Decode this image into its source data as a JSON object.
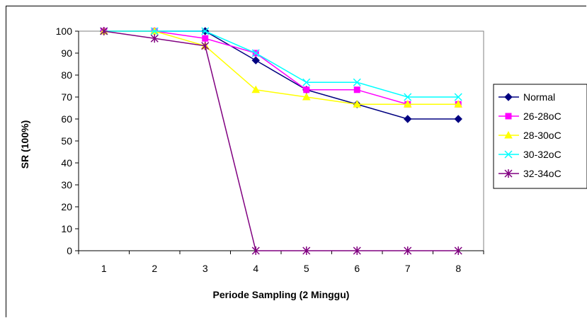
{
  "chart_data": {
    "type": "line",
    "title": "",
    "xlabel": "Periode Sampling (2 Minggu)",
    "ylabel": "SR (100%)",
    "x": [
      1,
      2,
      3,
      4,
      5,
      6,
      7,
      8
    ],
    "x_tick_labels": [
      "1",
      "2",
      "3",
      "4",
      "5",
      "6",
      "7",
      "8"
    ],
    "ylim": [
      0,
      100
    ],
    "y_ticks": [
      0,
      10,
      20,
      30,
      40,
      50,
      60,
      70,
      80,
      90,
      100
    ],
    "y_tick_labels": [
      "0",
      "10",
      "20",
      "30",
      "40",
      "50",
      "60",
      "70",
      "80",
      "90",
      "100"
    ],
    "grid": false,
    "legend_position": "right",
    "series": [
      {
        "name": "Normal",
        "color": "#000080",
        "marker": "diamond",
        "values": [
          100,
          100,
          100,
          86.7,
          73.3,
          66.7,
          60,
          60
        ]
      },
      {
        "name": "26-28oC",
        "color": "#ff00ff",
        "marker": "square",
        "values": [
          100,
          100,
          96.7,
          90,
          73.3,
          73.3,
          66.7,
          66.7
        ]
      },
      {
        "name": "28-30oC",
        "color": "#ffff00",
        "marker": "triangle",
        "values": [
          100,
          100,
          93.3,
          73.3,
          70,
          66.7,
          66.7,
          66.7
        ]
      },
      {
        "name": "30-32oC",
        "color": "#00ffff",
        "marker": "x",
        "values": [
          100,
          100,
          100,
          90,
          76.7,
          76.7,
          70,
          70
        ]
      },
      {
        "name": "32-34oC",
        "color": "#800080",
        "marker": "star",
        "values": [
          100,
          96.7,
          93.3,
          0,
          0,
          0,
          0,
          0
        ]
      }
    ]
  }
}
